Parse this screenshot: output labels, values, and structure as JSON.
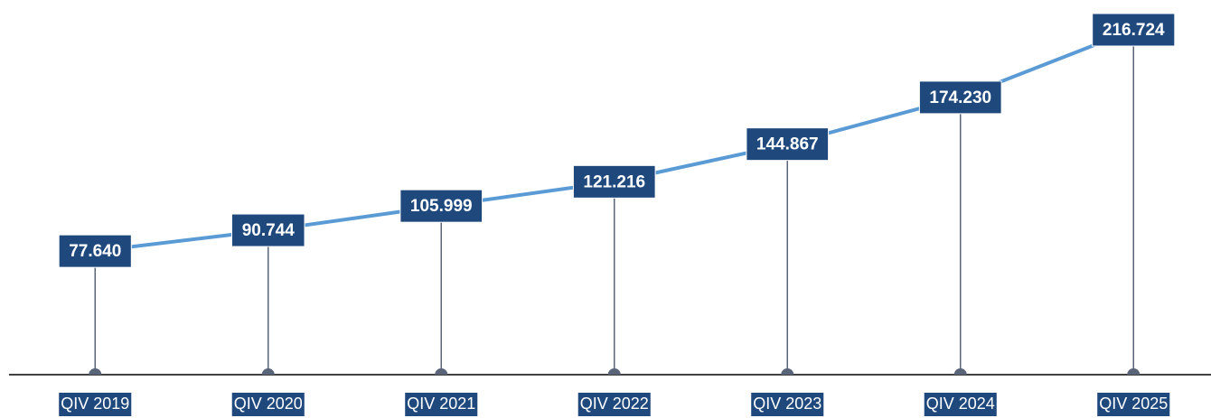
{
  "chart_data": {
    "type": "line",
    "categories": [
      "QIV 2019",
      "QIV 2020",
      "QIV 2021",
      "QIV 2022",
      "QIV 2023",
      "QIV 2024",
      "QIV 2025"
    ],
    "values": [
      77640,
      90744,
      105999,
      121216,
      144867,
      174230,
      216724
    ],
    "value_labels": [
      "77.640",
      "90.744",
      "105.999",
      "121.216",
      "144.867",
      "174.230",
      "216.724"
    ],
    "color": "#5b9bd5"
  }
}
